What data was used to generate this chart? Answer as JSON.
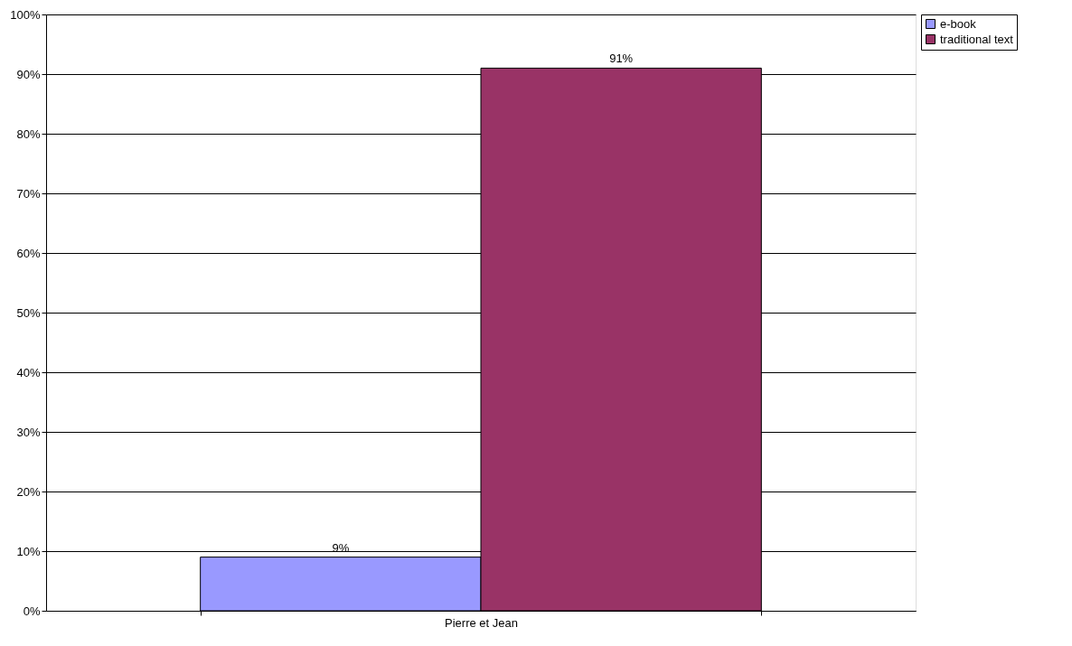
{
  "chart_data": {
    "type": "bar",
    "categories": [
      "Pierre et Jean"
    ],
    "series": [
      {
        "name": "e-book",
        "color": "#9999ff",
        "values": [
          9
        ],
        "value_labels": [
          "9%"
        ]
      },
      {
        "name": "traditional text",
        "color": "#993366",
        "values": [
          91
        ],
        "value_labels": [
          "91%"
        ]
      }
    ],
    "ylim": [
      0,
      100
    ],
    "yticks": [
      {
        "value": 0,
        "label": "0%"
      },
      {
        "value": 10,
        "label": "10%"
      },
      {
        "value": 20,
        "label": "20%"
      },
      {
        "value": 30,
        "label": "30%"
      },
      {
        "value": 40,
        "label": "40%"
      },
      {
        "value": 50,
        "label": "50%"
      },
      {
        "value": 60,
        "label": "60%"
      },
      {
        "value": 70,
        "label": "70%"
      },
      {
        "value": 80,
        "label": "80%"
      },
      {
        "value": 90,
        "label": "90%"
      },
      {
        "value": 100,
        "label": "100%"
      }
    ],
    "grid": "y",
    "legend": "right"
  }
}
